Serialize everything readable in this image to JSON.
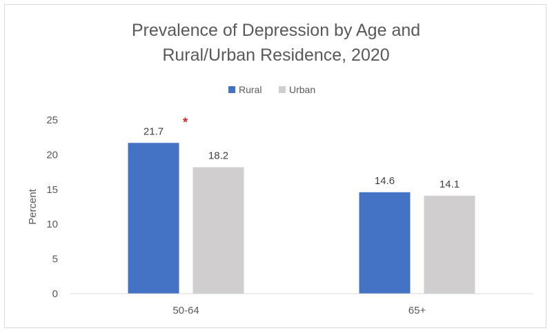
{
  "chart_data": {
    "type": "bar",
    "title_line1": "Prevalence of Depression by Age and",
    "title_line2": "Rural/Urban Residence, 2020",
    "xlabel": "",
    "ylabel": "Percent",
    "ylim": [
      0,
      25
    ],
    "yticks": [
      "0",
      "5",
      "10",
      "15",
      "20",
      "25"
    ],
    "categories": [
      "50-64",
      "65+"
    ],
    "series": [
      {
        "name": "Rural",
        "values": [
          21.7,
          14.6
        ],
        "labels": [
          "21.7",
          "14.6"
        ],
        "color": "#4472c4"
      },
      {
        "name": "Urban",
        "values": [
          18.2,
          14.1
        ],
        "labels": [
          "18.2",
          "14.1"
        ],
        "color": "#d0cece"
      }
    ],
    "legend_position": "top-center",
    "annotation": {
      "text": "*",
      "color": "#e21b1b",
      "category": "50-64"
    },
    "grid": false
  }
}
